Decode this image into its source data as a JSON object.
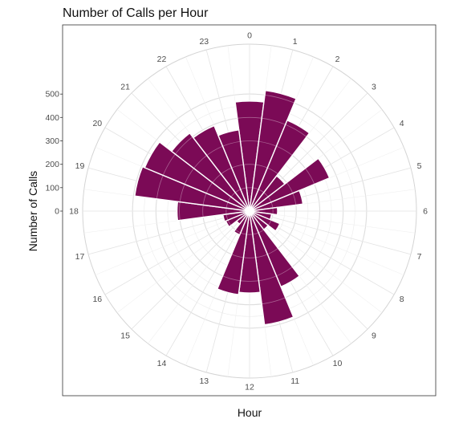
{
  "chart_data": {
    "type": "bar",
    "coord": "polar",
    "title": "Number of Calls per Hour",
    "xlabel": "Hour",
    "ylabel": "Number of Calls",
    "categories": [
      "0",
      "1",
      "2",
      "3",
      "4",
      "5",
      "6",
      "7",
      "8",
      "9",
      "10",
      "11",
      "12",
      "13",
      "14",
      "15",
      "16",
      "17",
      "18",
      "19",
      "20",
      "21",
      "22",
      "23"
    ],
    "values": [
      470,
      520,
      420,
      190,
      370,
      230,
      120,
      95,
      140,
      100,
      350,
      490,
      350,
      360,
      110,
      70,
      110,
      115,
      310,
      495,
      485,
      420,
      395,
      350
    ],
    "yticks": [
      0,
      100,
      200,
      300,
      400,
      500
    ],
    "ylim": [
      0,
      600
    ],
    "bar_color": "#7b0a56",
    "grid": true
  }
}
